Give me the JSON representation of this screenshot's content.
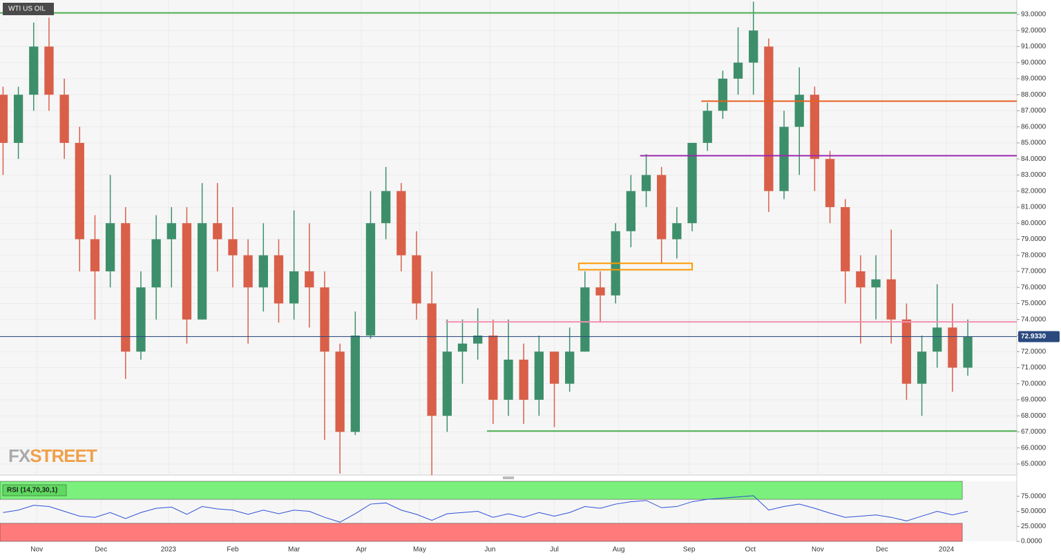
{
  "chart_data": [
    {
      "type": "candlestick",
      "title": "WTI US OIL",
      "watermark": [
        "FX",
        "STREET"
      ],
      "x": [
        1,
        6,
        11,
        16,
        21,
        26,
        31,
        36,
        41,
        46,
        51,
        56,
        61,
        66,
        71,
        76,
        81,
        86,
        91,
        96,
        101,
        106,
        111,
        116,
        121,
        126,
        131,
        136,
        141,
        146,
        151,
        156,
        161,
        166,
        171,
        176,
        181,
        186,
        191,
        196,
        201,
        206,
        211,
        216,
        221,
        226,
        231,
        236,
        241,
        246,
        251,
        256,
        261,
        266,
        271,
        276,
        281,
        286,
        291,
        296,
        301,
        306,
        311,
        316
      ],
      "open": [
        88,
        85,
        88,
        91,
        88,
        85,
        79,
        77,
        80,
        72,
        76,
        79,
        80,
        74,
        80,
        79,
        78,
        76,
        78,
        75,
        77,
        76,
        72,
        67,
        73,
        80,
        82,
        78,
        75,
        68,
        72,
        72.5,
        73,
        69,
        71.5,
        69,
        72,
        70,
        72,
        76,
        75.5,
        79.5,
        82,
        83,
        79,
        80,
        85,
        87,
        89,
        90,
        91,
        82,
        86,
        88,
        84,
        81,
        77,
        76,
        76.5,
        74,
        70,
        72,
        73.5,
        71
      ],
      "high": [
        88.5,
        88.5,
        92.5,
        92.8,
        89,
        86,
        80.5,
        83,
        81,
        77,
        80.5,
        81,
        81,
        82.5,
        82.5,
        81,
        79,
        80,
        79,
        80.8,
        80,
        77,
        72.5,
        74.5,
        82,
        83.5,
        82.5,
        79.5,
        77,
        74,
        74,
        74.7,
        74,
        74,
        72.5,
        73,
        72,
        73.5,
        77,
        77,
        80,
        83,
        84.3,
        83.5,
        81,
        85,
        87.5,
        89.5,
        92.2,
        93.8,
        91.5,
        87,
        89.7,
        88.5,
        84.5,
        81.5,
        78,
        78,
        79.6,
        75,
        73,
        76.2,
        75,
        74
      ],
      "low": [
        83,
        84,
        87,
        87,
        84,
        77,
        74,
        76,
        70.3,
        71.5,
        74,
        76,
        72.5,
        74,
        77,
        76,
        72.5,
        74.5,
        73.8,
        74,
        73.5,
        66.5,
        64.4,
        66.8,
        72.8,
        79,
        77,
        74,
        64.3,
        67,
        70,
        71.5,
        67.5,
        68,
        67.5,
        68,
        67.3,
        69.5,
        72,
        73.8,
        75,
        78.5,
        81,
        77.5,
        77.8,
        79.5,
        84.5,
        86.5,
        88,
        88,
        80.7,
        81.5,
        83,
        82,
        80,
        75,
        72.5,
        74,
        72.5,
        69,
        68,
        71,
        69.5,
        70.5
      ],
      "close": [
        85,
        88,
        91,
        88,
        85,
        79,
        77,
        80,
        72,
        76,
        79,
        80,
        74,
        80,
        79,
        78,
        76,
        78,
        75,
        77,
        76,
        72,
        67,
        73,
        80,
        82,
        78,
        75,
        68,
        72,
        72.5,
        73,
        69,
        71.5,
        69,
        72,
        70,
        72,
        76,
        75.5,
        79.5,
        82,
        83,
        79,
        80,
        85,
        87,
        89,
        90,
        92,
        82,
        86,
        88,
        84,
        81,
        77,
        76,
        76.5,
        74,
        70,
        72,
        73.5,
        71,
        72.933
      ],
      "up_color": "#3d8f6b",
      "down_color": "#d95f49",
      "xlim": [
        0,
        332
      ],
      "ylim": [
        64.31,
        93.9
      ],
      "xticks": [
        {
          "value": 12,
          "label": "Nov"
        },
        {
          "value": 33,
          "label": "Dec"
        },
        {
          "value": 55,
          "label": "2023"
        },
        {
          "value": 76,
          "label": "Feb"
        },
        {
          "value": 96,
          "label": "Mar"
        },
        {
          "value": 118,
          "label": "Apr"
        },
        {
          "value": 137,
          "label": "May"
        },
        {
          "value": 160,
          "label": "Jun"
        },
        {
          "value": 181,
          "label": "Jul"
        },
        {
          "value": 202,
          "label": "Aug"
        },
        {
          "value": 225,
          "label": "Sep"
        },
        {
          "value": 245,
          "label": "Oct"
        },
        {
          "value": 267,
          "label": "Nov"
        },
        {
          "value": 288,
          "label": "Dec"
        },
        {
          "value": 309,
          "label": "2024"
        }
      ],
      "yticks": [
        {
          "value": 65,
          "label": "65.0000"
        },
        {
          "value": 66,
          "label": "66.0000"
        },
        {
          "value": 67,
          "label": "67.0000"
        },
        {
          "value": 68,
          "label": "68.0000"
        },
        {
          "value": 69,
          "label": "69.0000"
        },
        {
          "value": 70,
          "label": "70.0000"
        },
        {
          "value": 71,
          "label": "71.0000"
        },
        {
          "value": 72,
          "label": "72.0000"
        },
        {
          "value": 73,
          "label": "73.0000"
        },
        {
          "value": 74,
          "label": "74.0000"
        },
        {
          "value": 75,
          "label": "75.0000"
        },
        {
          "value": 76,
          "label": "76.0000"
        },
        {
          "value": 77,
          "label": "77.0000"
        },
        {
          "value": 78,
          "label": "78.0000"
        },
        {
          "value": 79,
          "label": "79.0000"
        },
        {
          "value": 80,
          "label": "80.0000"
        },
        {
          "value": 81,
          "label": "81.0000"
        },
        {
          "value": 82,
          "label": "82.0000"
        },
        {
          "value": 83,
          "label": "83.0000"
        },
        {
          "value": 84,
          "label": "84.0000"
        },
        {
          "value": 85,
          "label": "85.0000"
        },
        {
          "value": 86,
          "label": "86.0000"
        },
        {
          "value": 87,
          "label": "87.0000"
        },
        {
          "value": 88,
          "label": "88.0000"
        },
        {
          "value": 89,
          "label": "89.0000"
        },
        {
          "value": 90,
          "label": "90.0000"
        },
        {
          "value": 91,
          "label": "91.0000"
        },
        {
          "value": 92,
          "label": "92.0000"
        },
        {
          "value": 93,
          "label": "93.0000"
        }
      ],
      "levels": [
        {
          "value": 93.1,
          "color": "#4caf50",
          "x_start": 0
        },
        {
          "value": 87.6,
          "color": "#e8601c",
          "x_start": 229
        },
        {
          "value": 84.2,
          "color": "#9c27b0",
          "x_start": 209
        },
        {
          "value": 73.85,
          "color": "#f48fb1",
          "x_start": 145.5
        },
        {
          "value": 67.05,
          "color": "#4caf50",
          "x_start": 159
        }
      ],
      "zones": [
        {
          "x": [
            189,
            226
          ],
          "y": [
            77.1,
            77.5
          ],
          "color": "#ff9800"
        }
      ],
      "last": {
        "value": 72.933,
        "label": "72.9330",
        "color": "#2a4a7f"
      },
      "grid": true
    },
    {
      "type": "line",
      "title": "RSI (14,70,30,1)",
      "x": [
        1,
        6,
        11,
        16,
        21,
        26,
        31,
        36,
        41,
        46,
        51,
        56,
        61,
        66,
        71,
        76,
        81,
        86,
        91,
        96,
        101,
        106,
        111,
        116,
        121,
        126,
        131,
        136,
        141,
        146,
        151,
        156,
        161,
        166,
        171,
        176,
        181,
        186,
        191,
        196,
        201,
        206,
        211,
        216,
        221,
        226,
        231,
        236,
        241,
        246,
        251,
        256,
        261,
        266,
        271,
        276,
        281,
        286,
        291,
        296,
        301,
        306,
        311,
        316
      ],
      "values": [
        48,
        52,
        60,
        58,
        50,
        42,
        40,
        48,
        38,
        48,
        55,
        57,
        45,
        58,
        54,
        52,
        45,
        52,
        46,
        52,
        50,
        40,
        32,
        46,
        62,
        64,
        52,
        45,
        35,
        46,
        48,
        50,
        40,
        46,
        40,
        48,
        42,
        48,
        58,
        55,
        62,
        66,
        68,
        56,
        58,
        66,
        70,
        72,
        74,
        76,
        52,
        58,
        62,
        55,
        47,
        40,
        42,
        44,
        40,
        34,
        42,
        50,
        44,
        50
      ],
      "color": "#2d4fd8",
      "xlim": [
        0,
        332
      ],
      "ylim": [
        0,
        100
      ],
      "overbought": 70,
      "oversold": 30,
      "yticks": [
        {
          "value": 0,
          "label": "0.0000"
        },
        {
          "value": 25,
          "label": "25.0000"
        },
        {
          "value": 50,
          "label": "50.0000"
        },
        {
          "value": 75,
          "label": "75.0000"
        }
      ]
    }
  ]
}
